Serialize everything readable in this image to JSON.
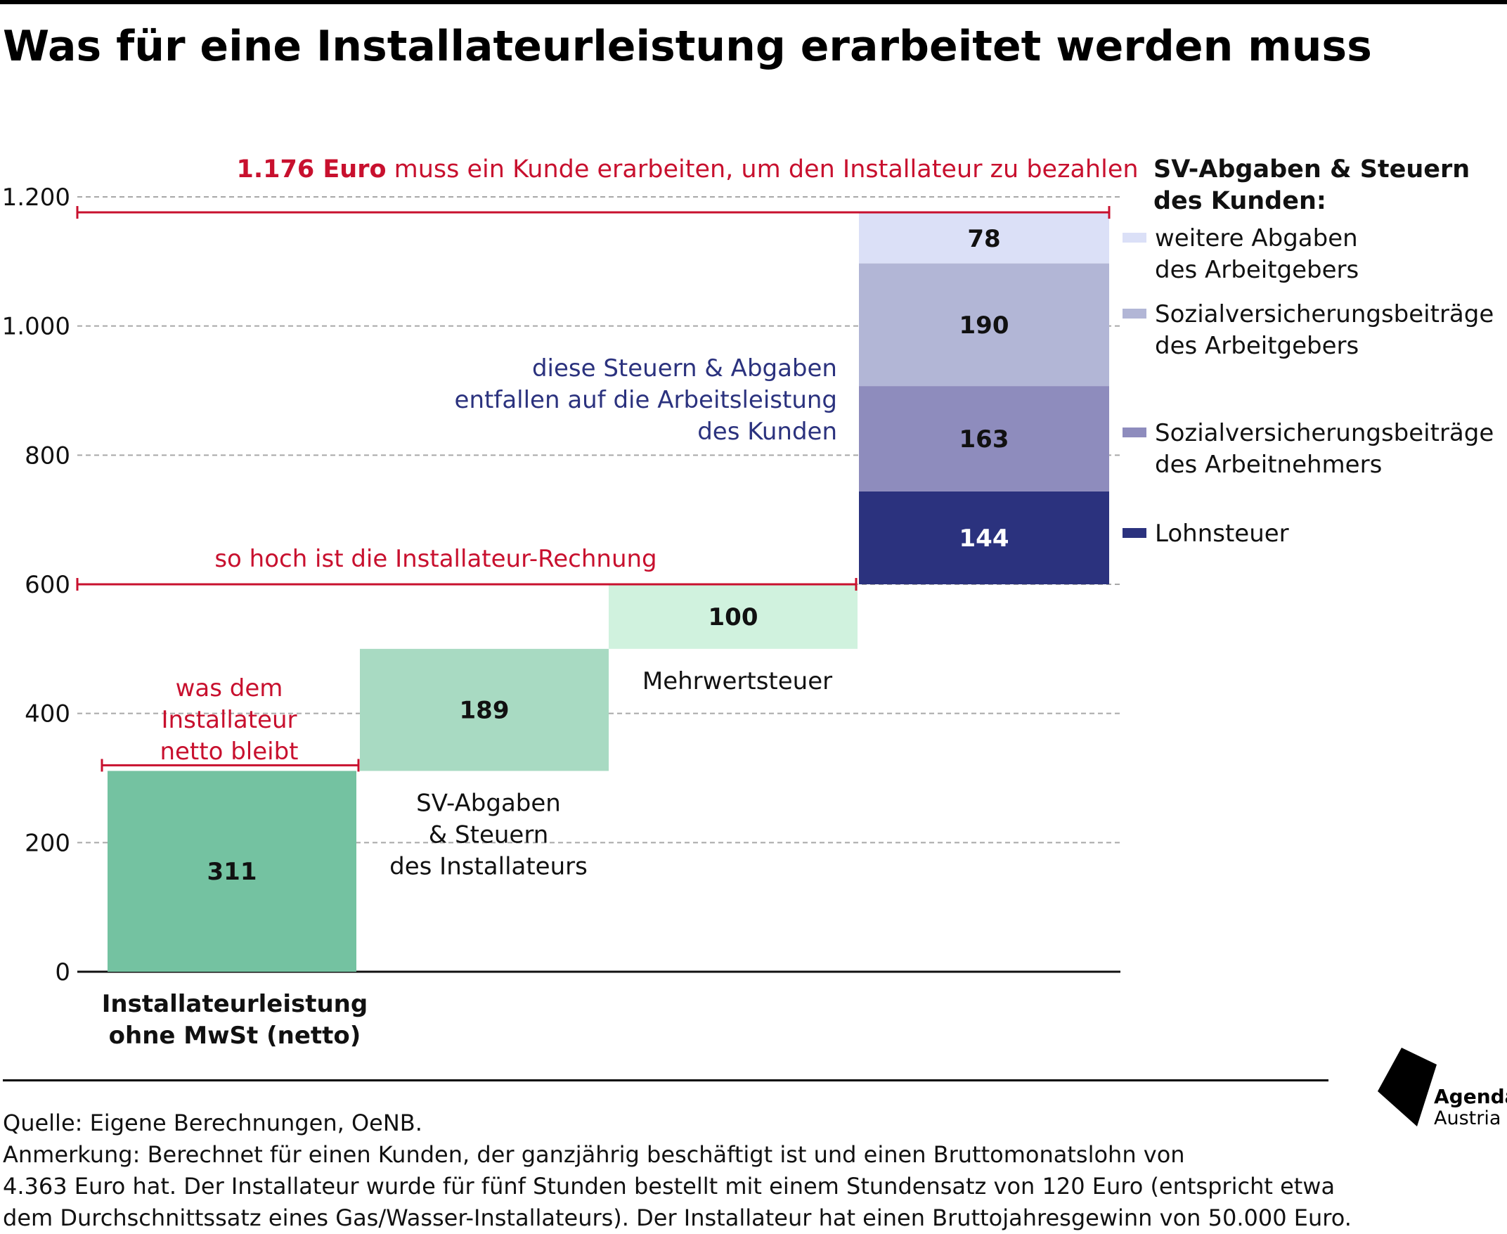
{
  "chart_data": {
    "type": "bar",
    "title": "Was für eine Installateurleistung erarbeitet werden muss",
    "ylim": [
      0,
      1200
    ],
    "yticks": [
      {
        "value": 0,
        "label": "0"
      },
      {
        "value": 200,
        "label": "200"
      },
      {
        "value": 400,
        "label": "400"
      },
      {
        "value": 600,
        "label": "600"
      },
      {
        "value": 800,
        "label": "800"
      },
      {
        "value": 1000,
        "label": "1.000"
      },
      {
        "value": 1200,
        "label": "1.200"
      }
    ],
    "grid": true,
    "bars": [
      {
        "category": "Installateurleistung ohne MwSt (netto)",
        "label_lines": [
          "Installateurleistung",
          "ohne MwSt (netto)"
        ],
        "base": 0,
        "value": 311,
        "value_label": "311",
        "color": "#74c2a1"
      },
      {
        "category": "SV-Abgaben & Steuern des Installateurs",
        "label_lines": [
          "SV-Abgaben",
          "& Steuern",
          "des Installateurs"
        ],
        "base": 311,
        "value": 189,
        "value_label": "189",
        "color": "#a8dac2"
      },
      {
        "category": "Mehrwertsteuer",
        "label_lines": [
          "Mehrwertsteuer"
        ],
        "base": 500,
        "value": 100,
        "value_label": "100",
        "color": "#d0f2de"
      }
    ],
    "stack": {
      "base": 600,
      "segments": [
        {
          "name": "Lohnsteuer",
          "value": 144,
          "value_label": "144",
          "color": "#2b327e"
        },
        {
          "name": "Sozialversicherungsbeiträge des Arbeitnehmers",
          "value": 163,
          "value_label": "163",
          "color": "#8e8cbd"
        },
        {
          "name": "Sozialversicherungsbeiträge des Arbeitgebers",
          "value": 190,
          "value_label": "190",
          "color": "#b2b6d6"
        },
        {
          "name": "weitere Abgaben des Arbeitgebers",
          "value": 78,
          "value_label": "78",
          "color": "#dbe0f7"
        }
      ]
    },
    "legend": {
      "placement": "right",
      "title_lines": [
        "SV-Abgaben & Steuern",
        "des Kunden:"
      ],
      "items": [
        {
          "lines": [
            "weitere Abgaben",
            "des Arbeitgebers"
          ],
          "color": "#dbe0f7",
          "anchor_value": 1140
        },
        {
          "lines": [
            "Sozialversicherungsbeiträge",
            "des Arbeitgebers"
          ],
          "color": "#b2b6d6",
          "anchor_value": 1000
        },
        {
          "lines": [
            "Sozialversicherungsbeiträge",
            "des Arbeitnehmers"
          ],
          "color": "#8e8cbd",
          "anchor_value": 830
        },
        {
          "lines": [
            "Lohnsteuer"
          ],
          "color": "#2b327e",
          "anchor_value": 680
        }
      ]
    },
    "annotations": {
      "total": {
        "value": 1176,
        "bold": "1.176 Euro",
        "rest": " muss ein Kunde erarbeiten, um den Installateur zu bezahlen",
        "color": "#c8102e"
      },
      "invoice": {
        "value": 600,
        "text": "so hoch ist die Installateur-Rechnung",
        "color": "#c8102e"
      },
      "net": {
        "value": 311,
        "lines": [
          "was dem",
          "Installateur",
          "netto bleibt"
        ],
        "color": "#c8102e"
      },
      "customer": {
        "lines": [
          "diese Steuern & Abgaben",
          "entfallen auf die Arbeitsleistung",
          "des Kunden"
        ],
        "color": "#2b327e"
      }
    }
  },
  "footer": {
    "source": "Quelle: Eigene Berechnungen, OeNB.",
    "note_lines": [
      "Anmerkung: Berechnet für einen Kunden, der ganzjährig beschäftigt ist und einen Bruttomonatslohn von",
      "4.363 Euro hat. Der Installateur wurde für fünf Stunden bestellt mit einem Stundensatz von 120 Euro (entspricht etwa",
      "dem Durchschnittssatz eines Gas/Wasser-Installateurs). Der Installateur hat einen Bruttojahresgewinn von 50.000 Euro."
    ]
  },
  "logo": {
    "line1": "Agenda",
    "line2": "Austria"
  }
}
